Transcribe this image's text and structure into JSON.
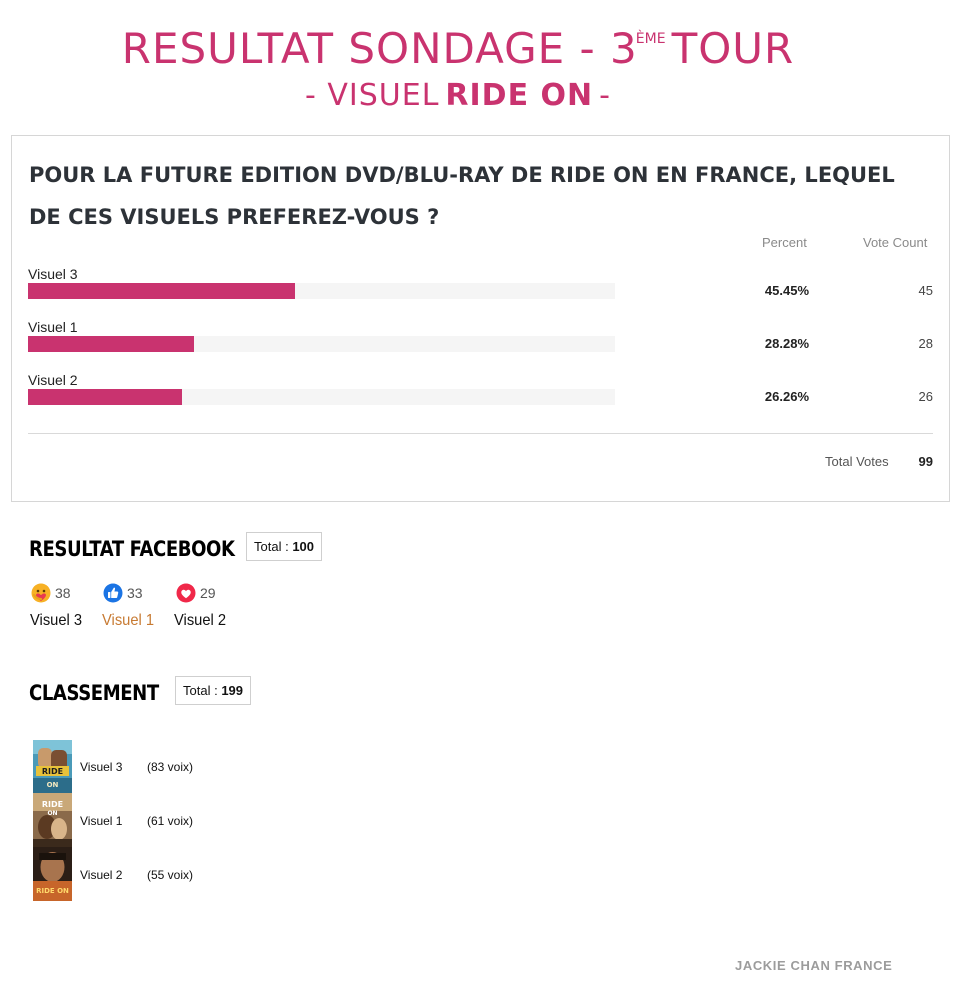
{
  "header": {
    "title_main": "RESULTAT SONDAGE - 3",
    "title_sup": "ÈME",
    "title_end": "TOUR",
    "subtitle_dash_left": "- VISUEL",
    "subtitle_bold": "RIDE ON",
    "subtitle_dash_right": "-"
  },
  "poll": {
    "question": "POUR LA FUTURE EDITION DVD/BLU-RAY DE RIDE ON EN FRANCE, LEQUEL DE CES VISUELS PREFEREZ-VOUS ?",
    "col_percent": "Percent",
    "col_votes": "Vote Count",
    "options": [
      {
        "label": "Visuel 3",
        "percent_text": "45.45%",
        "percent": 45.45,
        "votes": "45"
      },
      {
        "label": "Visuel 1",
        "percent_text": "28.28%",
        "percent": 28.28,
        "votes": "28"
      },
      {
        "label": "Visuel 2",
        "percent_text": "26.26%",
        "percent": 26.26,
        "votes": "26"
      }
    ],
    "total_label": "Total Votes",
    "total_value": "99",
    "bar_color": "#c9336f"
  },
  "facebook": {
    "title": "RESULTAT FACEBOOK",
    "total_prefix": "Total :",
    "total_value": "100",
    "reactions": [
      {
        "icon": "care-emoji-icon",
        "count": "38",
        "label": "Visuel 3",
        "highlight": false
      },
      {
        "icon": "like-thumb-icon",
        "count": "33",
        "label": "Visuel 1",
        "highlight": true
      },
      {
        "icon": "love-heart-icon",
        "count": "29",
        "label": "Visuel 2",
        "highlight": false
      }
    ]
  },
  "ranking": {
    "title": "CLASSEMENT",
    "total_prefix": "Total :",
    "total_value": "199",
    "items": [
      {
        "name": "Visuel 3",
        "votes": "(83 voix)"
      },
      {
        "name": "Visuel 1",
        "votes": "(61 voix)"
      },
      {
        "name": "Visuel 2",
        "votes": "(55 voix)"
      }
    ]
  },
  "footer": {
    "credit": "JACKIE CHAN FRANCE"
  },
  "colors": {
    "accent": "#c9336f",
    "highlight_label": "#c77a32",
    "footer_text": "#9c9c9c"
  }
}
